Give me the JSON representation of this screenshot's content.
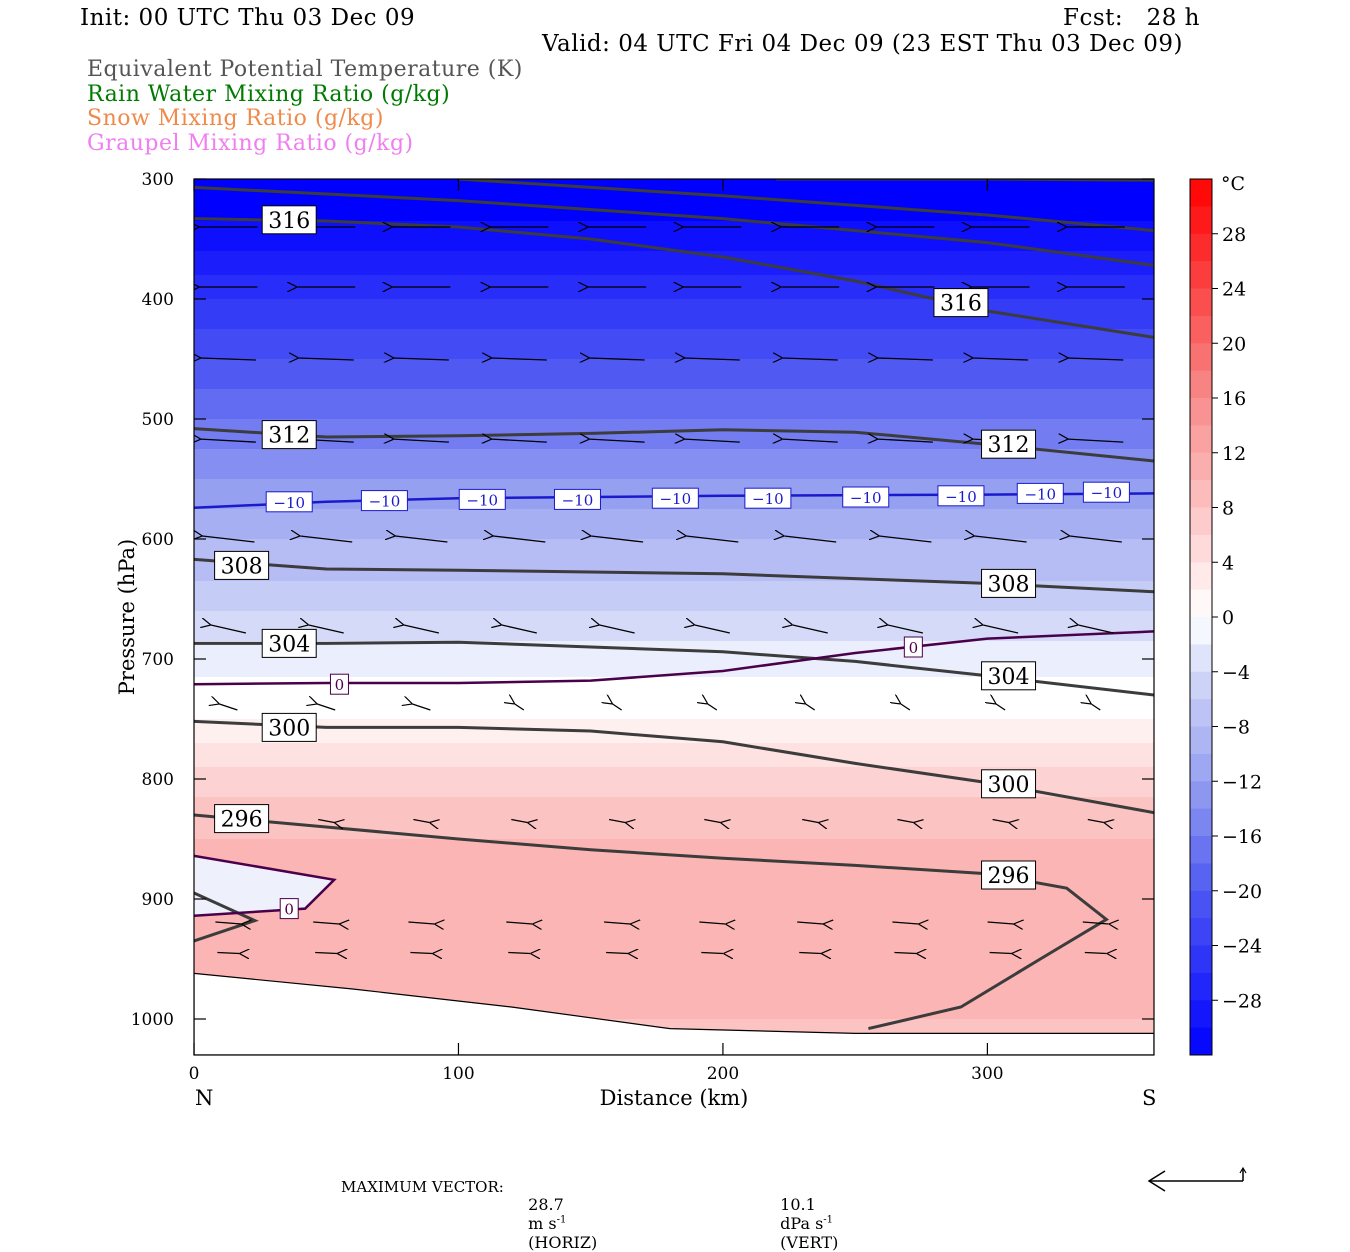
{
  "header": {
    "init": "Init: 00 UTC Thu 03 Dec 09",
    "fcst": "Fcst:   28 h",
    "valid": "Valid: 04 UTC Fri 04 Dec 09 (23 EST Thu 03 Dec 09)"
  },
  "legend": [
    {
      "label": "Equivalent Potential Temperature (K)",
      "color": "#555555"
    },
    {
      "label": "Rain Water Mixing Ratio (g/kg)",
      "color": "#007a00"
    },
    {
      "label": "Snow Mixing Ratio (g/kg)",
      "color": "#f08a4b"
    },
    {
      "label": "Graupel Mixing Ratio (g/kg)",
      "color": "#f07ef0"
    }
  ],
  "footer": {
    "max_vector_label": "MAXIMUM VECTOR:",
    "horiz_value": "28.7",
    "horiz_unit": "m s",
    "horiz_exp": "-1",
    "horiz_tag": "(HORIZ)",
    "vert_value": "10.1",
    "vert_unit": "dPa s",
    "vert_exp": "-1",
    "vert_tag": "(VERT)"
  },
  "chart_data": {
    "type": "heatmap",
    "xlabel": "Distance (km)",
    "ylabel": "Pressure (hPa)",
    "xlim": [
      0,
      363
    ],
    "ylim": [
      1030,
      300
    ],
    "x_ticks": [
      0,
      100,
      200,
      300
    ],
    "y_ticks": [
      300,
      400,
      500,
      600,
      700,
      800,
      900,
      1000
    ],
    "x_end_labels": {
      "left": "N",
      "right": "S"
    },
    "colorbar": {
      "unit": "°C",
      "ticks": [
        28,
        24,
        20,
        16,
        12,
        8,
        4,
        0,
        -4,
        -8,
        -12,
        -16,
        -20,
        -24,
        -28
      ],
      "tick_labels": [
        "28",
        "24",
        "20",
        "16",
        "12",
        "8",
        "4",
        "0",
        "−4",
        "−8",
        "−12",
        "−16",
        "−20",
        "−24",
        "−28"
      ],
      "range": [
        -32,
        32
      ],
      "interval": 2
    },
    "theta_e_contours": [
      {
        "label": "316",
        "points": [
          [
            0,
            333
          ],
          [
            50,
            335
          ],
          [
            100,
            340
          ],
          [
            150,
            350
          ],
          [
            200,
            365
          ],
          [
            250,
            385
          ],
          [
            300,
            410
          ],
          [
            363,
            432
          ]
        ],
        "label_at": [
          [
            36,
            334
          ],
          [
            290,
            403
          ]
        ]
      },
      {
        "label": "316",
        "points": [
          [
            0,
            307
          ],
          [
            100,
            318
          ],
          [
            200,
            333
          ],
          [
            300,
            353
          ],
          [
            363,
            372
          ]
        ],
        "label_at": []
      },
      {
        "label": "316",
        "points": [
          [
            100,
            300
          ],
          [
            200,
            314
          ],
          [
            300,
            330
          ],
          [
            363,
            343
          ]
        ],
        "label_at": []
      },
      {
        "label": "316",
        "points": [
          [
            220,
            300
          ],
          [
            300,
            300
          ],
          [
            363,
            301
          ]
        ],
        "label_at": []
      },
      {
        "label": "312",
        "points": [
          [
            0,
            508
          ],
          [
            50,
            515
          ],
          [
            100,
            514
          ],
          [
            150,
            512
          ],
          [
            200,
            509
          ],
          [
            250,
            511
          ],
          [
            300,
            521
          ],
          [
            363,
            535
          ]
        ],
        "label_at": [
          [
            36,
            513
          ],
          [
            308,
            521
          ]
        ]
      },
      {
        "label": "308",
        "points": [
          [
            0,
            617
          ],
          [
            50,
            625
          ],
          [
            100,
            626
          ],
          [
            200,
            629
          ],
          [
            300,
            637
          ],
          [
            363,
            644
          ]
        ],
        "label_at": [
          [
            18,
            622
          ],
          [
            308,
            637
          ]
        ]
      },
      {
        "label": "304",
        "points": [
          [
            0,
            687
          ],
          [
            50,
            687
          ],
          [
            100,
            686
          ],
          [
            150,
            690
          ],
          [
            200,
            694
          ],
          [
            250,
            702
          ],
          [
            300,
            714
          ],
          [
            363,
            730
          ]
        ],
        "label_at": [
          [
            36,
            687
          ],
          [
            308,
            714
          ]
        ]
      },
      {
        "label": "300",
        "points": [
          [
            0,
            752
          ],
          [
            50,
            757
          ],
          [
            100,
            757
          ],
          [
            150,
            760
          ],
          [
            200,
            769
          ],
          [
            250,
            787
          ],
          [
            300,
            803
          ],
          [
            363,
            828
          ]
        ],
        "label_at": [
          [
            36,
            757
          ],
          [
            308,
            804
          ]
        ]
      },
      {
        "label": "296",
        "points": [
          [
            0,
            830
          ],
          [
            50,
            840
          ],
          [
            100,
            850
          ],
          [
            150,
            859
          ],
          [
            200,
            866
          ],
          [
            250,
            872
          ],
          [
            300,
            879
          ],
          [
            330,
            891
          ],
          [
            345,
            917
          ],
          [
            320,
            950
          ],
          [
            290,
            990
          ],
          [
            255,
            1008
          ]
        ],
        "label_at": [
          [
            18,
            833
          ],
          [
            308,
            880
          ]
        ]
      },
      {
        "label": "296",
        "points": [
          [
            0,
            895
          ],
          [
            23,
            918
          ],
          [
            0,
            935
          ]
        ],
        "label_at": []
      }
    ],
    "temperature_contours": [
      {
        "label": "−10",
        "color": "#1a1acc",
        "points": [
          [
            0,
            574
          ],
          [
            50,
            569
          ],
          [
            100,
            566
          ],
          [
            200,
            564
          ],
          [
            300,
            563
          ],
          [
            363,
            562
          ]
        ],
        "label_at": [
          [
            36,
            569
          ],
          [
            72,
            568
          ],
          [
            109,
            567
          ],
          [
            145,
            567
          ],
          [
            182,
            566
          ],
          [
            217,
            566
          ],
          [
            254,
            565
          ],
          [
            290,
            564
          ],
          [
            320,
            562
          ],
          [
            345,
            561
          ]
        ]
      },
      {
        "label": "0",
        "color": "#4a004a",
        "points": [
          [
            0,
            721
          ],
          [
            50,
            720
          ],
          [
            100,
            720
          ],
          [
            150,
            718
          ],
          [
            200,
            710
          ],
          [
            250,
            695
          ],
          [
            300,
            683
          ],
          [
            363,
            677
          ]
        ],
        "label_at": [
          [
            55,
            721
          ],
          [
            272,
            690
          ]
        ]
      },
      {
        "label": "0",
        "color": "#4a004a",
        "points": [
          [
            0,
            864
          ],
          [
            53,
            884
          ],
          [
            42,
            908
          ],
          [
            0,
            914
          ]
        ],
        "label_at": [
          [
            36,
            908
          ]
        ]
      }
    ],
    "maximum_vector": {
      "horizontal_m_s": 28.7,
      "vertical_dPa_s": 10.1
    }
  }
}
